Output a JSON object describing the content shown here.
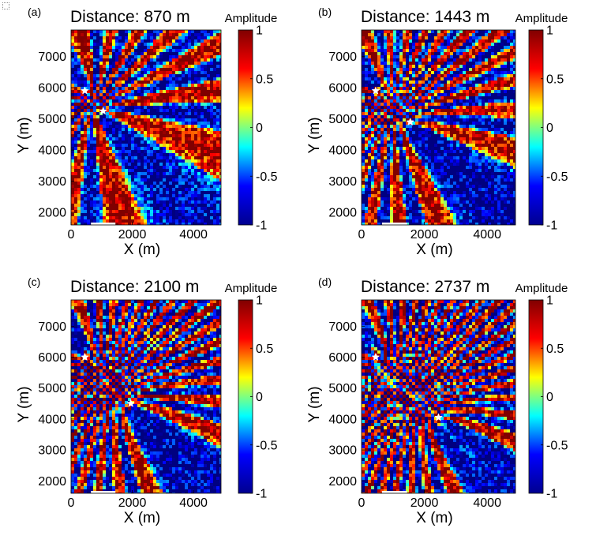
{
  "colorbar": {
    "label": "Amplitude",
    "ticks": [
      1,
      0.5,
      0,
      -0.5,
      -1
    ],
    "tick_labels": [
      "1",
      "0.5",
      "0",
      "-0.5",
      "-1"
    ],
    "colors": [
      "#00008f",
      "#0000ff",
      "#00ffff",
      "#ffff00",
      "#ff0000",
      "#800000"
    ]
  },
  "chart_data": [
    {
      "type": "heatmap",
      "panel_label": "(a)",
      "title": "Distance: 870 m",
      "xlabel": "X (m)",
      "ylabel": "Y (m)",
      "xlim": [
        0,
        4900
      ],
      "ylim": [
        1600,
        7850
      ],
      "x_ticks": [
        0,
        2000,
        4000
      ],
      "x_tick_labels": [
        "0",
        "2000",
        "4000"
      ],
      "y_ticks": [
        2000,
        3000,
        4000,
        5000,
        6000,
        7000
      ],
      "y_tick_labels": [
        "2000",
        "3000",
        "4000",
        "5000",
        "6000",
        "7000"
      ],
      "value_range": [
        -1,
        1
      ],
      "sources": [
        {
          "x": 450,
          "y": 5900,
          "marker": "star"
        },
        {
          "x": 1050,
          "y": 5250,
          "marker": "star"
        }
      ],
      "scale_bar_x": [
        650,
        1450
      ]
    },
    {
      "type": "heatmap",
      "panel_label": "(b)",
      "title": "Distance: 1443 m",
      "xlabel": "X (m)",
      "ylabel": "Y (m)",
      "xlim": [
        0,
        4900
      ],
      "ylim": [
        1600,
        7850
      ],
      "x_ticks": [
        0,
        2000,
        4000
      ],
      "x_tick_labels": [
        "0",
        "2000",
        "4000"
      ],
      "y_ticks": [
        2000,
        3000,
        4000,
        5000,
        6000,
        7000
      ],
      "y_tick_labels": [
        "2000",
        "3000",
        "4000",
        "5000",
        "6000",
        "7000"
      ],
      "value_range": [
        -1,
        1
      ],
      "sources": [
        {
          "x": 450,
          "y": 5900,
          "marker": "star"
        },
        {
          "x": 1550,
          "y": 4900,
          "marker": "star"
        }
      ],
      "scale_bar_x": [
        650,
        1450
      ]
    },
    {
      "type": "heatmap",
      "panel_label": "(c)",
      "title": "Distance: 2100 m",
      "xlabel": "X (m)",
      "ylabel": "Y (m)",
      "xlim": [
        0,
        4900
      ],
      "ylim": [
        1600,
        7850
      ],
      "x_ticks": [
        0,
        2000,
        4000
      ],
      "x_tick_labels": [
        "0",
        "2000",
        "4000"
      ],
      "y_ticks": [
        2000,
        3000,
        4000,
        5000,
        6000,
        7000
      ],
      "y_tick_labels": [
        "2000",
        "3000",
        "4000",
        "5000",
        "6000",
        "7000"
      ],
      "value_range": [
        -1,
        1
      ],
      "sources": [
        {
          "x": 450,
          "y": 6000,
          "marker": "star"
        },
        {
          "x": 1950,
          "y": 4500,
          "marker": "star"
        }
      ],
      "scale_bar_x": [
        650,
        1450
      ]
    },
    {
      "type": "heatmap",
      "panel_label": "(d)",
      "title": "Distance: 2737 m",
      "xlabel": "X (m)",
      "ylabel": "Y (m)",
      "xlim": [
        0,
        4900
      ],
      "ylim": [
        1600,
        7850
      ],
      "x_ticks": [
        0,
        2000,
        4000
      ],
      "x_tick_labels": [
        "0",
        "2000",
        "4000"
      ],
      "y_ticks": [
        2000,
        3000,
        4000,
        5000,
        6000,
        7000
      ],
      "y_tick_labels": [
        "2000",
        "3000",
        "4000",
        "5000",
        "6000",
        "7000"
      ],
      "value_range": [
        -1,
        1
      ],
      "sources": [
        {
          "x": 450,
          "y": 6000,
          "marker": "star"
        },
        {
          "x": 2450,
          "y": 4050,
          "marker": "star"
        }
      ],
      "scale_bar_x": [
        650,
        1450
      ]
    }
  ]
}
